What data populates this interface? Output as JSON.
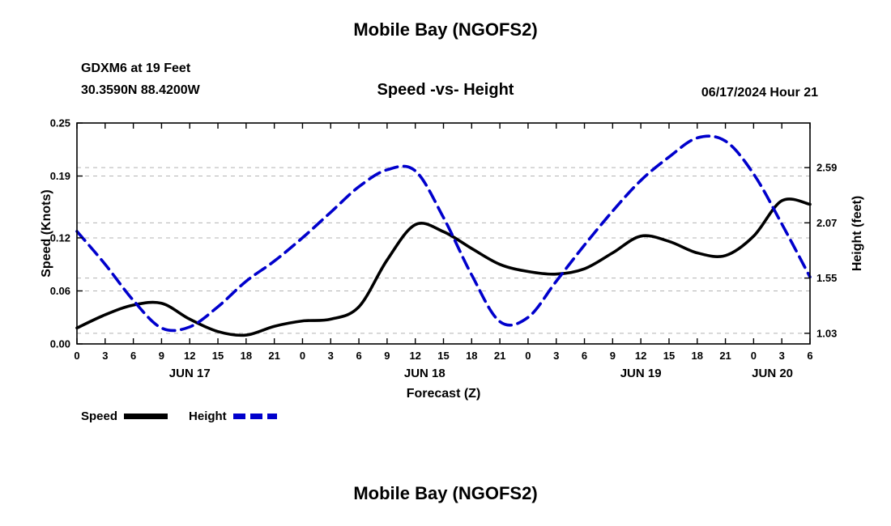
{
  "page": {
    "top_title": "Mobile Bay (NGOFS2)",
    "bottom_title": "Mobile Bay (NGOFS2)",
    "station_name": "GDXM6 at 19 Feet",
    "station_coords": "30.3590N  88.4200W",
    "plot_title": "Speed -vs- Height",
    "forecast_datetime": "06/17/2024 Hour 21"
  },
  "legend": {
    "items": [
      {
        "label": "Speed",
        "color": "#000000",
        "style": "solid"
      },
      {
        "label": "Height",
        "color": "#0000cc",
        "style": "dashed"
      }
    ]
  },
  "colors": {
    "speed_line": "#000000",
    "height_line": "#0000cc",
    "grid": "#b3b3b3",
    "frame": "#000000"
  },
  "chart_data": {
    "type": "line",
    "title": "Speed -vs- Height",
    "xlabel": "Forecast (Z)",
    "ylabel_left": "Speed (Knots)",
    "ylabel_right": "Height (feet)",
    "grid": true,
    "x_hours": [
      0,
      3,
      6,
      9,
      12,
      15,
      18,
      21,
      24,
      27,
      30,
      33,
      36,
      39,
      42,
      45,
      48,
      51,
      54,
      57,
      60,
      63,
      66,
      69,
      72,
      75,
      78
    ],
    "x_tick_labels": [
      "0",
      "3",
      "6",
      "9",
      "12",
      "15",
      "18",
      "21",
      "0",
      "3",
      "6",
      "9",
      "12",
      "15",
      "18",
      "21",
      "0",
      "3",
      "6",
      "9",
      "12",
      "15",
      "18",
      "21",
      "0",
      "3",
      "6"
    ],
    "day_labels": [
      {
        "text": "JUN 17",
        "hour": 12
      },
      {
        "text": "JUN 18",
        "hour": 37
      },
      {
        "text": "JUN 19",
        "hour": 60
      },
      {
        "text": "JUN 20",
        "hour": 74
      }
    ],
    "left_axis": {
      "min": 0.0,
      "max": 0.25,
      "tick_values": [
        0.0,
        0.06,
        0.12,
        0.19,
        0.25
      ],
      "tick_labels": [
        "0.00",
        "0.06",
        "0.12",
        "0.19",
        "0.25"
      ]
    },
    "right_axis": {
      "min": 0.93,
      "max": 3.01,
      "tick_values": [
        1.03,
        1.55,
        2.07,
        2.59
      ],
      "tick_labels": [
        "1.03",
        "1.55",
        "2.07",
        "2.59"
      ]
    },
    "series": [
      {
        "name": "Speed",
        "axis": "left",
        "color": "#000000",
        "dash": "solid",
        "values": [
          0.018,
          0.033,
          0.044,
          0.046,
          0.028,
          0.014,
          0.01,
          0.02,
          0.026,
          0.028,
          0.042,
          0.095,
          0.135,
          0.127,
          0.108,
          0.09,
          0.082,
          0.079,
          0.085,
          0.103,
          0.122,
          0.116,
          0.103,
          0.1,
          0.122,
          0.162,
          0.158
        ]
      },
      {
        "name": "Height",
        "axis": "right",
        "color": "#0000cc",
        "dash": "dashed",
        "values": [
          1.99,
          1.68,
          1.34,
          1.08,
          1.09,
          1.28,
          1.52,
          1.71,
          1.93,
          2.17,
          2.41,
          2.57,
          2.56,
          2.12,
          1.58,
          1.14,
          1.18,
          1.52,
          1.86,
          2.18,
          2.47,
          2.69,
          2.87,
          2.84,
          2.53,
          2.06,
          1.56
        ]
      }
    ]
  }
}
